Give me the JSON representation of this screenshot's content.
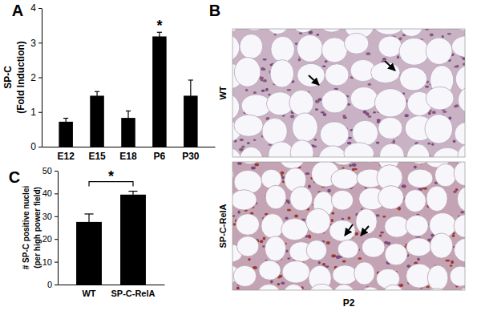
{
  "chart_data": [
    {
      "type": "bar",
      "panel": "A",
      "categories": [
        "E12",
        "E15",
        "E18",
        "P6",
        "P30"
      ],
      "values": [
        0.72,
        1.47,
        0.83,
        3.18,
        1.47
      ],
      "errors": [
        0.1,
        0.12,
        0.2,
        0.12,
        0.45
      ],
      "color": "#000000",
      "ylabel": [
        "SP-C",
        "(Fold Induction)"
      ],
      "ylim": [
        0,
        4
      ],
      "yticks": [
        0,
        1,
        2,
        3,
        4
      ],
      "grid": false,
      "annotations": [
        {
          "text": "*",
          "category": "P6"
        }
      ]
    },
    {
      "type": "bar",
      "panel": "C",
      "categories": [
        "WT",
        "SP-C-RelA"
      ],
      "values": [
        27.5,
        39.5
      ],
      "errors": [
        3.5,
        1.5
      ],
      "color": "#000000",
      "ylabel": [
        "# SP-C positive nuclei",
        "(per high power field)"
      ],
      "ylim": [
        0,
        50
      ],
      "yticks": [
        0,
        10,
        20,
        30,
        40,
        50
      ],
      "grid": false,
      "annotations": [
        {
          "text": "*",
          "from": "WT",
          "to": "SP-C-RelA"
        }
      ]
    }
  ],
  "image_panel": {
    "panel": "B",
    "rows": [
      "WT",
      "SP-C-RelA"
    ],
    "caption": "P2"
  }
}
